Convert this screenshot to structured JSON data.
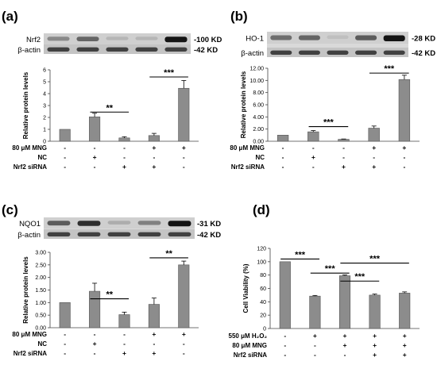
{
  "chart_data": [
    {
      "type": "bar",
      "panel_label": "(a)",
      "blot": {
        "target": "Nrf2",
        "target_kd": "-100 KD",
        "control": "β-actin",
        "control_kd": "-42 KD",
        "target_intensity": [
          0.35,
          0.55,
          0.1,
          0.1,
          1.0
        ]
      },
      "ylabel": "Relative protein levels",
      "ylim": [
        0,
        6
      ],
      "yticks": [
        "0",
        "1",
        "2",
        "3",
        "4",
        "5",
        "6"
      ],
      "values": [
        1.0,
        2.05,
        0.28,
        0.48,
        4.45
      ],
      "errors": [
        0.0,
        0.3,
        0.1,
        0.18,
        0.65
      ],
      "significance": [
        {
          "from": 1,
          "to": 2,
          "label": "**",
          "y": 2.45
        },
        {
          "from": 3,
          "to": 4,
          "label": "***",
          "y": 5.4
        }
      ],
      "conditions": [
        {
          "label": "80 μM MNG",
          "marks": [
            "-",
            "-",
            "-",
            "+",
            "+"
          ]
        },
        {
          "label": "NC",
          "marks": [
            "-",
            "+",
            "-",
            "-",
            "-"
          ]
        },
        {
          "label": "Nrf2 siRNA",
          "marks": [
            "-",
            "-",
            "+",
            "+",
            "-"
          ]
        }
      ]
    },
    {
      "type": "bar",
      "panel_label": "(b)",
      "blot": {
        "target": "HO-1",
        "target_kd": "-28 KD",
        "control": "β-actin",
        "control_kd": "-42 KD",
        "target_intensity": [
          0.5,
          0.55,
          0.05,
          0.6,
          1.0
        ]
      },
      "ylabel": "Relative protein levels",
      "ylim": [
        0,
        12
      ],
      "yticks": [
        "0.00",
        "2.00",
        "4.00",
        "6.00",
        "8.00",
        "10.00",
        "12.00"
      ],
      "values": [
        1.0,
        1.55,
        0.32,
        2.15,
        10.15
      ],
      "errors": [
        0.0,
        0.2,
        0.05,
        0.35,
        0.7
      ],
      "significance": [
        {
          "from": 1,
          "to": 2,
          "label": "***",
          "y": 2.4
        },
        {
          "from": 3,
          "to": 4,
          "label": "***",
          "y": 11.2
        }
      ],
      "conditions": [
        {
          "label": "80 μM MNG",
          "marks": [
            "-",
            "-",
            "-",
            "+",
            "+"
          ]
        },
        {
          "label": "NC",
          "marks": [
            "-",
            "+",
            "-",
            "-",
            "-"
          ]
        },
        {
          "label": "Nrf2 siRNA",
          "marks": [
            "-",
            "-",
            "+",
            "+",
            "-"
          ]
        }
      ]
    },
    {
      "type": "bar",
      "panel_label": "(c)",
      "blot": {
        "target": "NQO1",
        "target_kd": "-31 KD",
        "control": "β-actin",
        "control_kd": "-42 KD",
        "target_intensity": [
          0.6,
          0.85,
          0.15,
          0.4,
          1.0
        ]
      },
      "ylabel": "Relative protein levels",
      "ylim": [
        0,
        3
      ],
      "yticks": [
        "0.00",
        "0.50",
        "1.00",
        "1.50",
        "2.00",
        "2.50",
        "3.00"
      ],
      "values": [
        1.0,
        1.45,
        0.52,
        0.93,
        2.5
      ],
      "errors": [
        0.0,
        0.32,
        0.1,
        0.25,
        0.15
      ],
      "significance": [
        {
          "from": 1,
          "to": 2,
          "label": "**",
          "y": 1.15
        },
        {
          "from": 3,
          "to": 4,
          "label": "**",
          "y": 2.78
        }
      ],
      "conditions": [
        {
          "label": "80 μM MNG",
          "marks": [
            "-",
            "-",
            "-",
            "+",
            "+"
          ]
        },
        {
          "label": "NC",
          "marks": [
            "-",
            "+",
            "-",
            "-",
            "-"
          ]
        },
        {
          "label": "Nrf2 siRNA",
          "marks": [
            "-",
            "-",
            "+",
            "+",
            "-"
          ]
        }
      ]
    },
    {
      "type": "bar",
      "panel_label": "(d)",
      "ylabel": "Cell Viability (%)",
      "ylim": [
        0,
        120
      ],
      "yticks": [
        "0",
        "20",
        "40",
        "60",
        "80",
        "100",
        "120"
      ],
      "values": [
        100,
        48.5,
        79,
        50,
        53
      ],
      "errors": [
        0,
        1.0,
        1.2,
        1.5,
        1.8
      ],
      "significance": [
        {
          "from": 0,
          "to": 1,
          "label": "***",
          "y": 104
        },
        {
          "from": 1,
          "to": 2,
          "label": "***",
          "y": 83
        },
        {
          "from": 2,
          "to": 3,
          "label": "***",
          "y": 71
        },
        {
          "from": 2,
          "to": 4,
          "label": "***",
          "y": 98
        }
      ],
      "conditions": [
        {
          "label": "550 μM H₂O₂",
          "marks": [
            "-",
            "+",
            "+",
            "+",
            "+"
          ]
        },
        {
          "label": "80 μM MNG",
          "marks": [
            "-",
            "-",
            "+",
            "+",
            "+"
          ]
        },
        {
          "label": "Nrf2 siRNA",
          "marks": [
            "-",
            "-",
            "-",
            "+",
            "+"
          ]
        }
      ]
    }
  ]
}
